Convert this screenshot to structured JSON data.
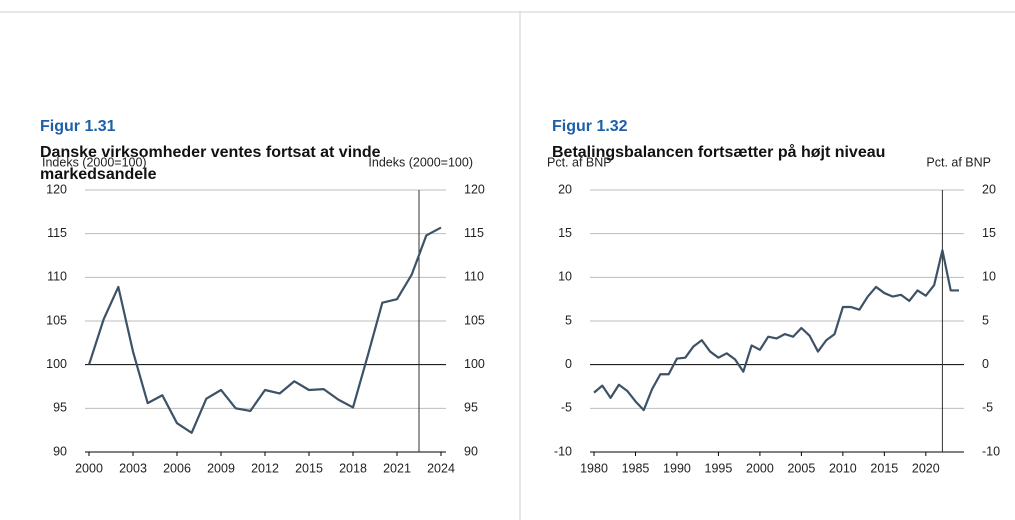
{
  "chart_data": [
    {
      "type": "line",
      "figure": "Figur 1.31",
      "title": "Danske virksomheder ventes fortsat at vinde markedsandele",
      "ylabel": "Indeks (2000=100)",
      "y2label": "Indeks (2000=100)",
      "x": [
        2000,
        2001,
        2002,
        2003,
        2004,
        2005,
        2006,
        2007,
        2008,
        2009,
        2010,
        2011,
        2012,
        2013,
        2014,
        2015,
        2016,
        2017,
        2018,
        2019,
        2020,
        2021,
        2022,
        2023,
        2024
      ],
      "series": [
        {
          "name": "Markedsandele",
          "color": "#3d5266",
          "values": [
            100,
            105.2,
            108.9,
            101.5,
            95.6,
            96.5,
            93.3,
            92.2,
            96.1,
            97.1,
            95,
            94.7,
            97.1,
            96.7,
            98.1,
            97.1,
            97.2,
            96,
            95.1,
            101,
            107.1,
            107.5,
            110.3,
            114.8,
            115.7
          ]
        }
      ],
      "xlim": [
        2000,
        2024
      ],
      "xticks": [
        2000,
        2003,
        2006,
        2009,
        2012,
        2015,
        2018,
        2021,
        2024
      ],
      "ylim": [
        90,
        120
      ],
      "yticks": [
        90,
        95,
        100,
        105,
        110,
        115,
        120
      ],
      "y2lim": [
        90,
        120
      ],
      "y2ticks": [
        90,
        95,
        100,
        105,
        110,
        115,
        120
      ],
      "baseline": 100,
      "vline": 2022.5,
      "grid": true
    },
    {
      "type": "line",
      "figure": "Figur 1.32",
      "title": "Betalingsbalancen fortsætter på højt niveau",
      "ylabel": "Pct. af BNP",
      "y2label": "Pct. af BNP",
      "x": [
        1980,
        1981,
        1982,
        1983,
        1984,
        1985,
        1986,
        1987,
        1988,
        1989,
        1990,
        1991,
        1992,
        1993,
        1994,
        1995,
        1996,
        1997,
        1998,
        1999,
        2000,
        2001,
        2002,
        2003,
        2004,
        2005,
        2006,
        2007,
        2008,
        2009,
        2010,
        2011,
        2012,
        2013,
        2014,
        2015,
        2016,
        2017,
        2018,
        2019,
        2020,
        2021,
        2022,
        2023,
        2024
      ],
      "series": [
        {
          "name": "Betalingsbalance",
          "color": "#3d5266",
          "values": [
            -3.2,
            -2.4,
            -3.8,
            -2.3,
            -3.0,
            -4.2,
            -5.2,
            -2.8,
            -1.1,
            -1.1,
            0.7,
            0.8,
            2.1,
            2.8,
            1.5,
            0.8,
            1.3,
            0.6,
            -0.8,
            2.2,
            1.7,
            3.2,
            3.0,
            3.5,
            3.2,
            4.2,
            3.3,
            1.5,
            2.8,
            3.5,
            6.6,
            6.6,
            6.3,
            7.8,
            8.9,
            8.2,
            7.8,
            8.0,
            7.3,
            8.5,
            7.9,
            9.1,
            13.1,
            8.5,
            8.5
          ]
        }
      ],
      "xlim": [
        1980,
        2024
      ],
      "xticks": [
        1980,
        1985,
        1990,
        1995,
        2000,
        2005,
        2010,
        2015,
        2020
      ],
      "ylim": [
        -10,
        20
      ],
      "yticks": [
        -10,
        -5,
        0,
        5,
        10,
        15,
        20
      ],
      "y2lim": [
        -10,
        20
      ],
      "y2ticks": [
        -10,
        -5,
        0,
        5,
        10,
        15,
        20
      ],
      "baseline": 0,
      "vline": 2022,
      "grid": true
    }
  ]
}
